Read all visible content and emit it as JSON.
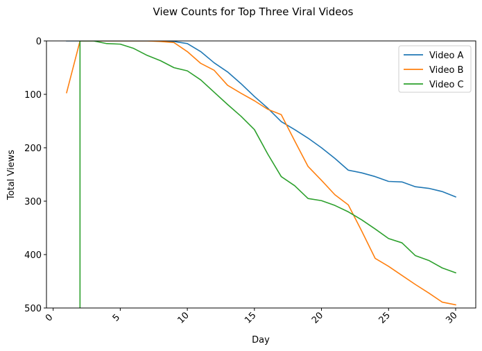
{
  "chart_data": {
    "type": "line",
    "title": "View Counts for Top Three Viral Videos",
    "xlabel": "Day",
    "ylabel": "Total Views",
    "xlim": [
      -0.5,
      31.5
    ],
    "ylim": [
      500,
      0
    ],
    "y_inverted": true,
    "x_ticks": [
      0,
      5,
      10,
      15,
      20,
      25,
      30
    ],
    "x_tick_labels": [
      "0",
      "5",
      "10",
      "15",
      "20",
      "25",
      "30"
    ],
    "x_tick_rotation": 45,
    "y_ticks": [
      0,
      100,
      200,
      300,
      400,
      500
    ],
    "y_tick_labels": [
      "0",
      "100",
      "200",
      "300",
      "400",
      "500"
    ],
    "grid": false,
    "legend_position": "top-right",
    "x": [
      1,
      2,
      3,
      4,
      5,
      6,
      7,
      8,
      9,
      10,
      11,
      12,
      13,
      14,
      15,
      16,
      17,
      18,
      19,
      20,
      21,
      22,
      23,
      24,
      25,
      26,
      27,
      28,
      29,
      30
    ],
    "series": [
      {
        "name": "Video A",
        "color": "#1f77b4",
        "values": [
          0,
          0,
          0,
          0,
          0,
          0,
          0,
          0,
          1,
          5,
          20,
          41,
          58,
          80,
          104,
          126,
          151,
          166,
          182,
          200,
          220,
          242,
          247,
          254,
          263,
          264,
          273,
          276,
          282,
          292
        ]
      },
      {
        "name": "Video B",
        "color": "#ff7f0e",
        "values": [
          97,
          0,
          0,
          0,
          0,
          0,
          0,
          1,
          3,
          20,
          42,
          55,
          83,
          98,
          112,
          128,
          138,
          187,
          235,
          261,
          288,
          307,
          356,
          407,
          422,
          439,
          456,
          472,
          489,
          494
        ]
      },
      {
        "name": "Video C",
        "color": "#2ca02c",
        "values": [
          null,
          0,
          0,
          5,
          6,
          14,
          27,
          37,
          50,
          56,
          73,
          96,
          119,
          141,
          166,
          212,
          254,
          271,
          295,
          299,
          308,
          320,
          335,
          352,
          370,
          378,
          402,
          411,
          425,
          434
        ],
        "vertical_drop_at_x": 2,
        "vertical_drop_to": 500
      }
    ]
  }
}
